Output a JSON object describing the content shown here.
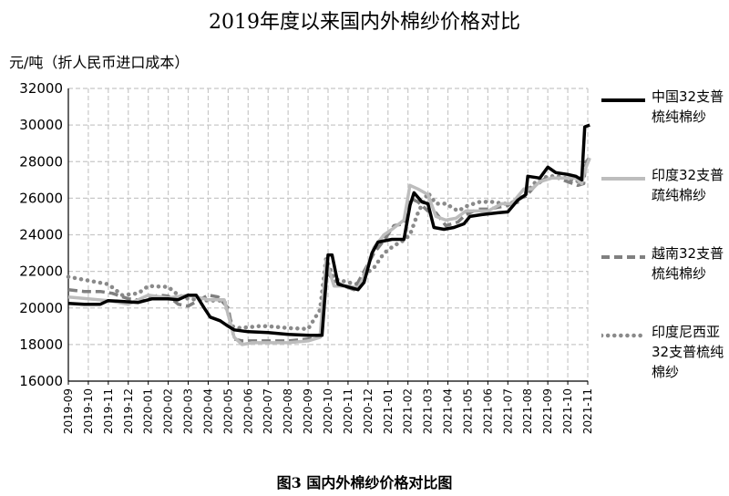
{
  "title": "2019年度以来国内外棉纱价格对比",
  "unit_label": "元/吨（折人民币进口成本）",
  "caption": "图3    国内外棉纱价格对比图",
  "chart_data": {
    "type": "line",
    "title": "2019年度以来国内外棉纱价格对比",
    "ylabel": "元/吨（折人民币进口成本）",
    "ylim": [
      16000,
      32000
    ],
    "yticks": [
      "32000",
      "30000",
      "28000",
      "26000",
      "24000",
      "22000",
      "20000",
      "18000",
      "16000"
    ],
    "x_categories": [
      "2019-09",
      "2019-10",
      "2019-11",
      "2019-12",
      "2020-01",
      "2020-02",
      "2020-03",
      "2020-04",
      "2020-05",
      "2020-06",
      "2020-07",
      "2020-08",
      "2020-09",
      "2020-10",
      "2020-11",
      "2020-12",
      "2021-01",
      "2021-02",
      "2021-03",
      "2021-04",
      "2021-05",
      "2021-06",
      "2021-07",
      "2021-08",
      "2021-09",
      "2021-10",
      "2021-11"
    ],
    "grid": true,
    "legend_position": "right",
    "series": [
      {
        "name": "中国32支普梳纯棉纱",
        "color": "#000000",
        "style": "solid",
        "points": [
          [
            0,
            20250
          ],
          [
            0.8,
            20200
          ],
          [
            1.6,
            20200
          ],
          [
            2,
            20400
          ],
          [
            2.8,
            20350
          ],
          [
            3.5,
            20300
          ],
          [
            4.2,
            20500
          ],
          [
            5,
            20500
          ],
          [
            5.5,
            20450
          ],
          [
            6,
            20700
          ],
          [
            6.4,
            20700
          ],
          [
            6.8,
            20000
          ],
          [
            7.1,
            19500
          ],
          [
            7.6,
            19300
          ],
          [
            8,
            19000
          ],
          [
            8.3,
            18800
          ],
          [
            9,
            18700
          ],
          [
            10,
            18650
          ],
          [
            11,
            18550
          ],
          [
            12,
            18500
          ],
          [
            12.7,
            18500
          ],
          [
            13,
            22900
          ],
          [
            13.2,
            22900
          ],
          [
            13.5,
            21300
          ],
          [
            14,
            21150
          ],
          [
            14.5,
            21000
          ],
          [
            14.8,
            21400
          ],
          [
            15.2,
            23000
          ],
          [
            15.5,
            23600
          ],
          [
            16.2,
            23750
          ],
          [
            16.8,
            23750
          ],
          [
            17.1,
            25600
          ],
          [
            17.3,
            26300
          ],
          [
            17.7,
            25800
          ],
          [
            18,
            25700
          ],
          [
            18.3,
            24400
          ],
          [
            18.8,
            24300
          ],
          [
            19.3,
            24400
          ],
          [
            19.8,
            24600
          ],
          [
            20.1,
            25000
          ],
          [
            20.7,
            25100
          ],
          [
            21.5,
            25200
          ],
          [
            22,
            25250
          ],
          [
            22.5,
            25900
          ],
          [
            22.9,
            26200
          ],
          [
            23,
            27200
          ],
          [
            23.6,
            27100
          ],
          [
            24,
            27700
          ],
          [
            24.4,
            27400
          ],
          [
            25,
            27300
          ],
          [
            25.4,
            27200
          ],
          [
            25.7,
            27000
          ],
          [
            25.85,
            29900
          ],
          [
            26.1,
            30000
          ]
        ]
      },
      {
        "name": "印度32支普疏纯棉纱",
        "color": "#bdbdbd",
        "style": "solid",
        "points": [
          [
            0,
            20600
          ],
          [
            1,
            20500
          ],
          [
            2,
            20400
          ],
          [
            3,
            20200
          ],
          [
            4,
            20700
          ],
          [
            5,
            20550
          ],
          [
            6,
            20700
          ],
          [
            7,
            20450
          ],
          [
            7.8,
            20450
          ],
          [
            8.3,
            18400
          ],
          [
            8.7,
            18000
          ],
          [
            9.2,
            18100
          ],
          [
            10,
            18100
          ],
          [
            11,
            18100
          ],
          [
            12,
            18200
          ],
          [
            12.6,
            18400
          ],
          [
            12.9,
            22600
          ],
          [
            13.3,
            21200
          ],
          [
            14,
            21200
          ],
          [
            14.5,
            21100
          ],
          [
            14.8,
            21700
          ],
          [
            15.3,
            23300
          ],
          [
            15.8,
            24000
          ],
          [
            16.2,
            24300
          ],
          [
            16.8,
            24800
          ],
          [
            17.1,
            26700
          ],
          [
            17.5,
            26500
          ],
          [
            18,
            26200
          ],
          [
            18.4,
            25000
          ],
          [
            18.9,
            24800
          ],
          [
            19.4,
            24900
          ],
          [
            19.9,
            25300
          ],
          [
            20.5,
            25300
          ],
          [
            21,
            25300
          ],
          [
            21.7,
            25700
          ],
          [
            22.2,
            25700
          ],
          [
            22.8,
            26500
          ],
          [
            23.2,
            26500
          ],
          [
            23.6,
            26900
          ],
          [
            24.2,
            27100
          ],
          [
            24.8,
            27100
          ],
          [
            25.4,
            27100
          ],
          [
            25.7,
            26800
          ],
          [
            25.85,
            27500
          ],
          [
            26.1,
            28200
          ]
        ]
      },
      {
        "name": "越南32支普梳纯棉纱",
        "color": "#808080",
        "style": "dashed",
        "points": [
          [
            0,
            21000
          ],
          [
            0.8,
            20900
          ],
          [
            1.6,
            20900
          ],
          [
            2.2,
            20800
          ],
          [
            3,
            20500
          ],
          [
            3.8,
            20400
          ],
          [
            4.5,
            20700
          ],
          [
            5,
            20650
          ],
          [
            5.5,
            20200
          ],
          [
            6,
            20100
          ],
          [
            6.5,
            20400
          ],
          [
            7,
            20700
          ],
          [
            7.5,
            20600
          ],
          [
            8,
            20000
          ],
          [
            8.3,
            18300
          ],
          [
            8.7,
            18200
          ],
          [
            9.3,
            18200
          ],
          [
            10,
            18200
          ],
          [
            11,
            18200
          ],
          [
            12,
            18300
          ],
          [
            12.6,
            18400
          ],
          [
            12.9,
            22000
          ],
          [
            13.3,
            21500
          ],
          [
            13.8,
            21200
          ],
          [
            14.3,
            21000
          ],
          [
            14.8,
            22000
          ],
          [
            15.3,
            23000
          ],
          [
            15.8,
            23700
          ],
          [
            16.3,
            24500
          ],
          [
            16.8,
            24600
          ],
          [
            17.1,
            26000
          ],
          [
            17.5,
            25800
          ],
          [
            18,
            25300
          ],
          [
            18.4,
            25200
          ],
          [
            18.9,
            24500
          ],
          [
            19.5,
            24700
          ],
          [
            19.9,
            25100
          ],
          [
            20.5,
            25400
          ],
          [
            21,
            25400
          ],
          [
            21.5,
            25500
          ],
          [
            22,
            25600
          ],
          [
            22.5,
            26000
          ],
          [
            22.9,
            26100
          ],
          [
            23.3,
            26600
          ],
          [
            23.9,
            27100
          ],
          [
            24.5,
            27100
          ],
          [
            25,
            26900
          ],
          [
            25.5,
            26700
          ],
          [
            25.8,
            26800
          ],
          [
            25.9,
            28000
          ],
          [
            26.1,
            28100
          ]
        ]
      },
      {
        "name": "印度尼西亚32支普梳纯棉纱",
        "color": "#8a8a8a",
        "style": "dotted",
        "points": [
          [
            0,
            21700
          ],
          [
            1,
            21500
          ],
          [
            2,
            21300
          ],
          [
            2.7,
            20700
          ],
          [
            3.5,
            20800
          ],
          [
            4,
            21200
          ],
          [
            5,
            21150
          ],
          [
            5.5,
            20700
          ],
          [
            6,
            20500
          ],
          [
            7,
            20400
          ],
          [
            7.8,
            20400
          ],
          [
            8.2,
            19000
          ],
          [
            8.6,
            18900
          ],
          [
            9.5,
            19000
          ],
          [
            10,
            19000
          ],
          [
            11,
            18900
          ],
          [
            12,
            18850
          ],
          [
            12.6,
            19900
          ],
          [
            12.9,
            22700
          ],
          [
            13.3,
            21600
          ],
          [
            14,
            21400
          ],
          [
            14.5,
            21300
          ],
          [
            14.8,
            21800
          ],
          [
            15.3,
            22200
          ],
          [
            15.8,
            23000
          ],
          [
            16.3,
            23400
          ],
          [
            16.8,
            23700
          ],
          [
            17.1,
            24000
          ],
          [
            17.5,
            25200
          ],
          [
            18,
            26300
          ],
          [
            18.4,
            25700
          ],
          [
            18.9,
            25700
          ],
          [
            19.5,
            25300
          ],
          [
            20,
            25600
          ],
          [
            20.6,
            25800
          ],
          [
            21.2,
            25800
          ],
          [
            21.8,
            25700
          ],
          [
            22.4,
            25700
          ],
          [
            22.9,
            26300
          ],
          [
            23.4,
            26900
          ],
          [
            24,
            27200
          ],
          [
            24.6,
            27200
          ],
          [
            25.2,
            27000
          ],
          [
            25.6,
            26900
          ],
          [
            25.8,
            27500
          ],
          [
            26.1,
            28300
          ]
        ]
      }
    ]
  }
}
